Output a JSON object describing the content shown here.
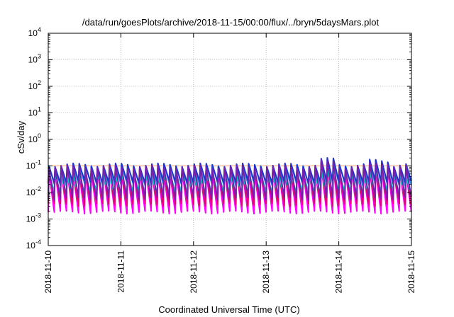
{
  "chart_data": {
    "type": "line",
    "title": "/data/run/goesPlots/archive/2018-11-15/00:00/flux/../bryn/5daysMars.plot",
    "xlabel": "Coordinated Universal Time (UTC)",
    "ylabel": "cSv/day",
    "x_range": [
      "2018-11-10",
      "2018-11-15"
    ],
    "x_ticks": [
      "2018-11-10",
      "2018-11-11",
      "2018-11-12",
      "2018-11-13",
      "2018-11-14",
      "2018-11-15"
    ],
    "y_scale": "log",
    "ylim": [
      0.0001,
      10000
    ],
    "y_ticks": [
      {
        "base": "10",
        "exp": "4"
      },
      {
        "base": "10",
        "exp": "3"
      },
      {
        "base": "10",
        "exp": "2"
      },
      {
        "base": "10",
        "exp": "1"
      },
      {
        "base": "10",
        "exp": "0"
      },
      {
        "base": "10",
        "exp": "-1"
      },
      {
        "base": "10",
        "exp": "-2"
      },
      {
        "base": "10",
        "exp": "-3"
      },
      {
        "base": "10",
        "exp": "-4"
      }
    ],
    "grid": true,
    "legend": "none",
    "reference_line": {
      "y": 0.1,
      "color": "#ff9966"
    },
    "cycle_days": 0.0833,
    "series_colors": [
      "#ff00ff",
      "#e60073",
      "#00cccc",
      "#2299ee",
      "#2233cc",
      "#7a1fa8"
    ],
    "series": [
      {
        "color": "#ff00ff",
        "peak_cSv_day": 0.06,
        "trough_cSv_day": 0.0018
      },
      {
        "color": "#e60073",
        "peak_cSv_day": 0.07,
        "trough_cSv_day": 0.0035
      },
      {
        "color": "#00cccc",
        "peak_cSv_day": 0.05,
        "trough_cSv_day": 0.009
      },
      {
        "color": "#2299ee",
        "peak_cSv_day": 0.1,
        "trough_cSv_day": 0.02
      },
      {
        "color": "#2233cc",
        "peak_cSv_day": 0.11,
        "trough_cSv_day": 0.025
      },
      {
        "color": "#7a1fa8",
        "peak_cSv_day": 0.09,
        "trough_cSv_day": 0.006
      }
    ]
  }
}
